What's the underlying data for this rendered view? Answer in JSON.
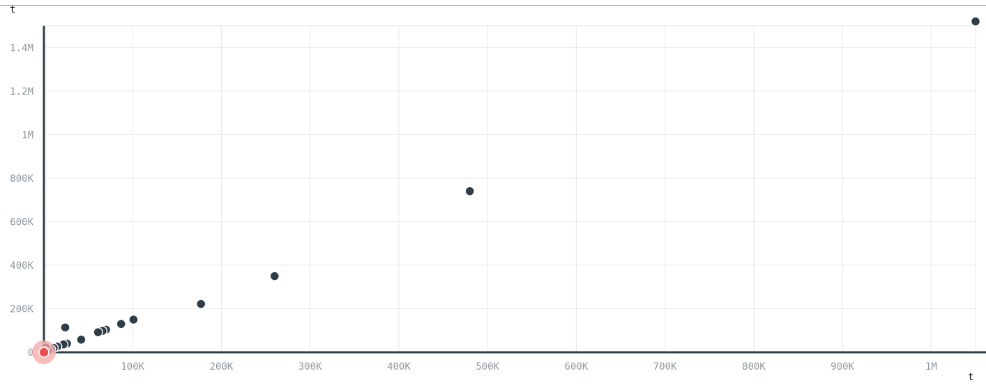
{
  "chart_data": {
    "type": "scatter",
    "xlabel": "t",
    "ylabel": "t",
    "xlim": [
      0,
      1050000
    ],
    "ylim": [
      0,
      1500000
    ],
    "grid": true,
    "x_ticks": [
      {
        "value": 100000,
        "label": "100K"
      },
      {
        "value": 200000,
        "label": "200K"
      },
      {
        "value": 300000,
        "label": "300K"
      },
      {
        "value": 400000,
        "label": "400K"
      },
      {
        "value": 500000,
        "label": "500K"
      },
      {
        "value": 600000,
        "label": "600K"
      },
      {
        "value": 700000,
        "label": "700K"
      },
      {
        "value": 800000,
        "label": "800K"
      },
      {
        "value": 900000,
        "label": "900K"
      },
      {
        "value": 1000000,
        "label": "1M"
      }
    ],
    "y_ticks": [
      {
        "value": 0,
        "label": "0"
      },
      {
        "value": 200000,
        "label": "200K"
      },
      {
        "value": 400000,
        "label": "400K"
      },
      {
        "value": 600000,
        "label": "600K"
      },
      {
        "value": 800000,
        "label": "800K"
      },
      {
        "value": 1000000,
        "label": "1M"
      },
      {
        "value": 1200000,
        "label": "1.2M"
      },
      {
        "value": 1400000,
        "label": "1.4M"
      }
    ],
    "series": [
      {
        "color": "#2f3e46",
        "points": [
          {
            "x": 1050000,
            "y": 1520000
          },
          {
            "x": 480000,
            "y": 740000
          },
          {
            "x": 260000,
            "y": 350000
          },
          {
            "x": 177000,
            "y": 222000
          },
          {
            "x": 101000,
            "y": 150000
          },
          {
            "x": 87000,
            "y": 130000
          },
          {
            "x": 70000,
            "y": 104000
          },
          {
            "x": 66000,
            "y": 98000
          },
          {
            "x": 61000,
            "y": 92000
          },
          {
            "x": 42000,
            "y": 58000
          },
          {
            "x": 24000,
            "y": 114000
          },
          {
            "x": 26000,
            "y": 40000
          },
          {
            "x": 22000,
            "y": 36000
          },
          {
            "x": 15000,
            "y": 26000
          },
          {
            "x": 11000,
            "y": 20000
          },
          {
            "x": 8000,
            "y": 14000
          },
          {
            "x": 5000,
            "y": 10000
          },
          {
            "x": 2000,
            "y": 22000
          },
          {
            "x": 1000,
            "y": 6000
          }
        ]
      },
      {
        "color": "#e8514f",
        "highlight": true,
        "points": [
          {
            "x": 0,
            "y": 0
          }
        ]
      }
    ],
    "colors": {
      "axis": "#2f3e46",
      "grid": "#e6e6e6",
      "tick_label": "#8f979e",
      "point": "#2f3e46",
      "highlight": "#e8514f",
      "highlight_halo": "#f2a7a6"
    }
  }
}
